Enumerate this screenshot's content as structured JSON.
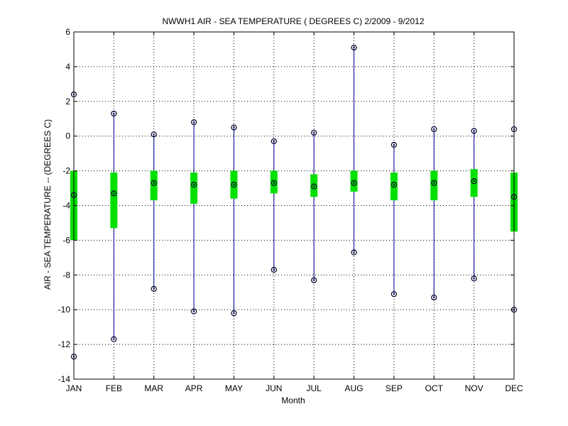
{
  "chart_data": {
    "type": "box",
    "title": "NWWH1  AIR - SEA TEMPERATURE ( DEGREES C) 2/2009 - 9/2012",
    "xlabel": "Month",
    "ylabel": "AIR - SEA TEMPERATURE -- (DEGREES C)",
    "ylim": [
      -14,
      6
    ],
    "yticks": [
      -14,
      -12,
      -10,
      -8,
      -6,
      -4,
      -2,
      0,
      2,
      4,
      6
    ],
    "grid": true,
    "categories": [
      "JAN",
      "FEB",
      "MAR",
      "APR",
      "MAY",
      "JUN",
      "JUL",
      "AUG",
      "SEP",
      "OCT",
      "NOV",
      "DEC"
    ],
    "series": [
      {
        "name": "max",
        "values": [
          2.4,
          1.3,
          0.1,
          0.8,
          0.5,
          -0.3,
          0.2,
          5.1,
          -0.5,
          0.4,
          0.3,
          0.4
        ]
      },
      {
        "name": "q3",
        "values": [
          -2.0,
          -2.1,
          -2.0,
          -2.1,
          -2.0,
          -2.0,
          -2.2,
          -2.0,
          -2.1,
          -2.0,
          -1.9,
          -2.1
        ]
      },
      {
        "name": "median",
        "values": [
          -3.4,
          -3.3,
          -2.7,
          -2.8,
          -2.8,
          -2.7,
          -2.9,
          -2.7,
          -2.8,
          -2.7,
          -2.6,
          -3.5
        ]
      },
      {
        "name": "q1",
        "values": [
          -6.0,
          -5.3,
          -3.7,
          -3.9,
          -3.6,
          -3.3,
          -3.5,
          -3.2,
          -3.7,
          -3.7,
          -3.5,
          -5.5
        ]
      },
      {
        "name": "min",
        "values": [
          -12.7,
          -11.7,
          -8.8,
          -10.1,
          -10.2,
          -7.7,
          -8.3,
          -6.7,
          -9.1,
          -9.3,
          -8.2,
          -10.0
        ]
      }
    ],
    "colors": {
      "whisker": "#00008b",
      "box": "#00e000",
      "grid": "#000000",
      "marker": "#000033"
    }
  }
}
